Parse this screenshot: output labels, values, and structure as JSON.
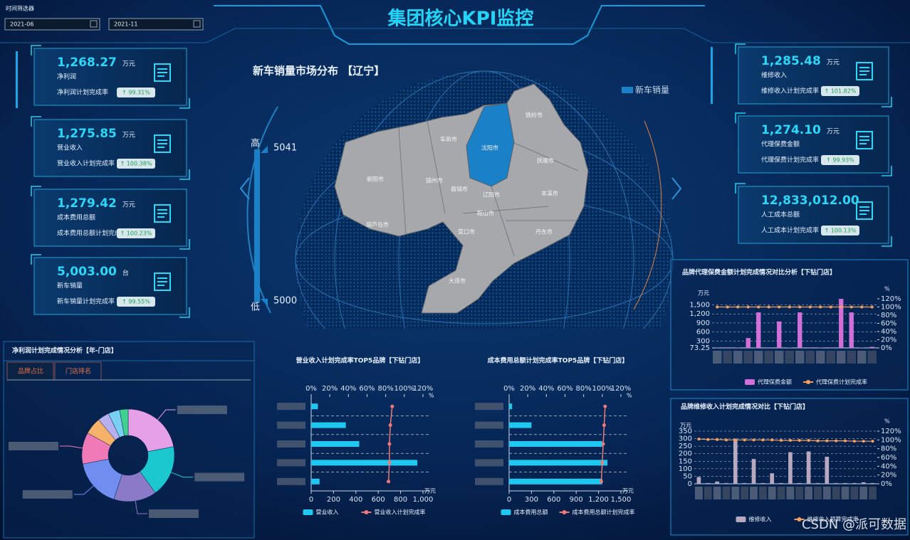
{
  "header": {
    "title": "集团核心KPI监控",
    "filter_label": "时间筛选器",
    "start": "2021-06",
    "end": "2021-11"
  },
  "kpis_left": [
    {
      "value": "1,268.27",
      "unit": "万元",
      "label": "净利润",
      "rate_label": "净利润计划完成率",
      "rate": "↑ 99.31%"
    },
    {
      "value": "1,275.85",
      "unit": "万元",
      "label": "营业收入",
      "rate_label": "营业收入计划完成率",
      "rate": "↑ 100.38%"
    },
    {
      "value": "1,279.42",
      "unit": "万元",
      "label": "成本费用总额",
      "rate_label": "成本费用总额计划完成率",
      "rate": "↑ 100.23%"
    },
    {
      "value": "5,003.00",
      "unit": "台",
      "label": "新车销量",
      "rate_label": "新车销量计划完成率",
      "rate": "↑ 99.55%"
    }
  ],
  "kpis_right": [
    {
      "value": "1,285.48",
      "unit": "万元",
      "label": "维修收入",
      "rate_label": "维修收入计划完成率",
      "rate": "↑ 101.82%"
    },
    {
      "value": "1,274.10",
      "unit": "万元",
      "label": "代理保费金额",
      "rate_label": "代理保费计划完成率",
      "rate": "↑ 99.93%"
    },
    {
      "value": "12,833,012.00",
      "label": "人工成本总额",
      "rate_label": "人工成本计划完成率",
      "rate": "↑ 100.13%"
    }
  ],
  "map": {
    "title": "新车销量市场分布 【辽宁】",
    "legend": "新车销量",
    "high_label": "高",
    "low_label": "低",
    "max": "5041",
    "min": "5000",
    "cities": [
      "铁岭市",
      "阜新市",
      "沈阳市",
      "抚顺市",
      "朝阳市",
      "锦州市",
      "盘锦市",
      "辽阳市",
      "本溪市",
      "鞍山市",
      "葫芦岛市",
      "营口市",
      "丹东市",
      "大连市"
    ]
  },
  "chart_data": [
    {
      "type": "pie",
      "title": "净利润计划完成情况分析【年-门店】",
      "tabs": [
        "品牌占比",
        "门店排名"
      ],
      "categories": [
        null,
        null,
        null,
        null,
        null,
        null,
        null,
        null,
        null
      ],
      "values": [
        22,
        18,
        15,
        17,
        11,
        6,
        4,
        4,
        3
      ],
      "colors": [
        "#e6a0e8",
        "#1cc8d0",
        "#8a7ac8",
        "#6f8ef0",
        "#f07ab8",
        "#f7b26a",
        "#b7b0f0",
        "#7ad0f0",
        "#40d090"
      ]
    },
    {
      "type": "hbar_line",
      "title": "营业收入计划完成率TOP5品牌【下钻门店】",
      "categories": [
        null,
        null,
        null,
        null,
        null
      ],
      "series": [
        {
          "name": "营业收入",
          "color": "#1ec8f0",
          "values": [
            60,
            310,
            430,
            950,
            75
          ]
        },
        {
          "name": "营业收入计划完成率",
          "color": "#f07878",
          "axis": "x2",
          "values": [
            87,
            85,
            84,
            84,
            83
          ]
        }
      ],
      "xlim": [
        0,
        1000
      ],
      "xticks": [
        0,
        200,
        400,
        600,
        800,
        {
          "value": 1000,
          "label": "1,000"
        }
      ],
      "x_label": "万元",
      "x2lim": [
        0,
        120
      ],
      "x2ticks": [
        {
          "value": 0,
          "label": "0%"
        },
        {
          "value": 20,
          "label": "20%"
        },
        {
          "value": 40,
          "label": "40%"
        },
        {
          "value": 60,
          "label": "60%"
        },
        {
          "value": 80,
          "label": "80%"
        },
        {
          "value": 100,
          "label": "100%"
        },
        {
          "value": 120,
          "label": "120%"
        }
      ],
      "x2_label": "%"
    },
    {
      "type": "hbar_line",
      "title": "成本费用总额计划完成率TOP5品牌【下钻门店】",
      "categories": [
        null,
        null,
        null,
        null,
        null
      ],
      "series": [
        {
          "name": "成本费用总额",
          "color": "#1ec8f0",
          "values": [
            40,
            300,
            1250,
            1320,
            1250
          ]
        },
        {
          "name": "成本费用总额计划完成率",
          "color": "#f07878",
          "axis": "x2",
          "values": [
            103,
            102,
            101,
            100,
            99
          ]
        }
      ],
      "xlim": [
        0,
        1500
      ],
      "xticks": [
        0,
        300,
        600,
        900,
        {
          "value": 1200,
          "label": "1,200"
        },
        {
          "value": 1500,
          "label": "1,500"
        }
      ],
      "x_label": "万元",
      "x2lim": [
        0,
        120
      ],
      "x2ticks": [
        {
          "value": 0,
          "label": "0%"
        },
        {
          "value": 20,
          "label": "20%"
        },
        {
          "value": 40,
          "label": "40%"
        },
        {
          "value": 60,
          "label": "60%"
        },
        {
          "value": 80,
          "label": "80%"
        },
        {
          "value": 100,
          "label": "100%"
        },
        {
          "value": 120,
          "label": "120%"
        }
      ],
      "x2_label": "%"
    },
    {
      "type": "bar_line",
      "title": "品牌代理保费金额计划完成情况对比分析【下钻门店】",
      "categories": [
        null,
        null,
        null,
        null,
        null,
        null,
        null,
        null,
        null,
        null,
        null,
        null,
        null,
        null,
        null,
        null
      ],
      "series": [
        {
          "name": "代理保费金额",
          "color": "#d070d8",
          "values": [
            80,
            90,
            85,
            400,
            1250,
            90,
            950,
            85,
            1250,
            90,
            85,
            90,
            1700,
            1250,
            85,
            110
          ]
        },
        {
          "name": "代理保费计划完成率",
          "color": "#f4a060",
          "axis": "y2",
          "values": [
            100,
            100,
            100,
            100,
            100,
            100,
            100,
            100,
            100,
            100,
            100,
            100,
            100,
            100,
            100,
            100
          ]
        }
      ],
      "ylim": [
        73.25,
        1700
      ],
      "yticks": [
        73.25,
        300,
        600,
        900,
        {
          "value": 1200,
          "label": "1,200"
        },
        {
          "value": 1500,
          "label": "1,500"
        }
      ],
      "y_label": "万元",
      "y2lim": [
        0,
        120
      ],
      "y2ticks": [
        {
          "value": 0,
          "label": "0%"
        },
        {
          "value": 20,
          "label": "20%"
        },
        {
          "value": 40,
          "label": "40%"
        },
        {
          "value": 60,
          "label": "60%"
        },
        {
          "value": 80,
          "label": "80%"
        },
        {
          "value": 100,
          "label": "100%"
        },
        {
          "value": 120,
          "label": "120%"
        }
      ],
      "y2_label": "%"
    },
    {
      "type": "bar_line",
      "title": "品牌维修收入计划完成情况对比【下钻门店】",
      "categories": [
        null,
        null,
        null,
        null,
        null,
        null,
        null,
        null,
        null,
        null,
        null,
        null,
        null,
        null,
        null,
        null,
        null,
        null,
        null,
        null
      ],
      "series": [
        {
          "name": "维修收入",
          "color": "#b8a8c0",
          "values": [
            45,
            5,
            15,
            5,
            300,
            5,
            165,
            5,
            70,
            5,
            210,
            5,
            215,
            5,
            180,
            5,
            5,
            5,
            10,
            5
          ]
        },
        {
          "name": "维修收入预算完成率",
          "color": "#f4a060",
          "axis": "y2",
          "values": [
            102,
            101,
            101,
            100,
            100,
            100,
            100,
            100,
            100,
            99,
            99,
            99,
            99,
            98,
            98,
            98,
            98,
            97,
            97,
            97
          ]
        }
      ],
      "ylim": [
        0,
        350
      ],
      "yticks": [
        0,
        50,
        100,
        150,
        200,
        250,
        300,
        350
      ],
      "y_label": "万元",
      "y2lim": [
        0,
        120
      ],
      "y2ticks": [
        {
          "value": 0,
          "label": "0%"
        },
        {
          "value": 20,
          "label": "20%"
        },
        {
          "value": 40,
          "label": "40%"
        },
        {
          "value": 60,
          "label": "60%"
        },
        {
          "value": 80,
          "label": "80%"
        },
        {
          "value": 100,
          "label": "100%"
        },
        {
          "value": 120,
          "label": "120%"
        }
      ],
      "y2_label": "%"
    }
  ],
  "watermark": "CSDN @派可数据"
}
